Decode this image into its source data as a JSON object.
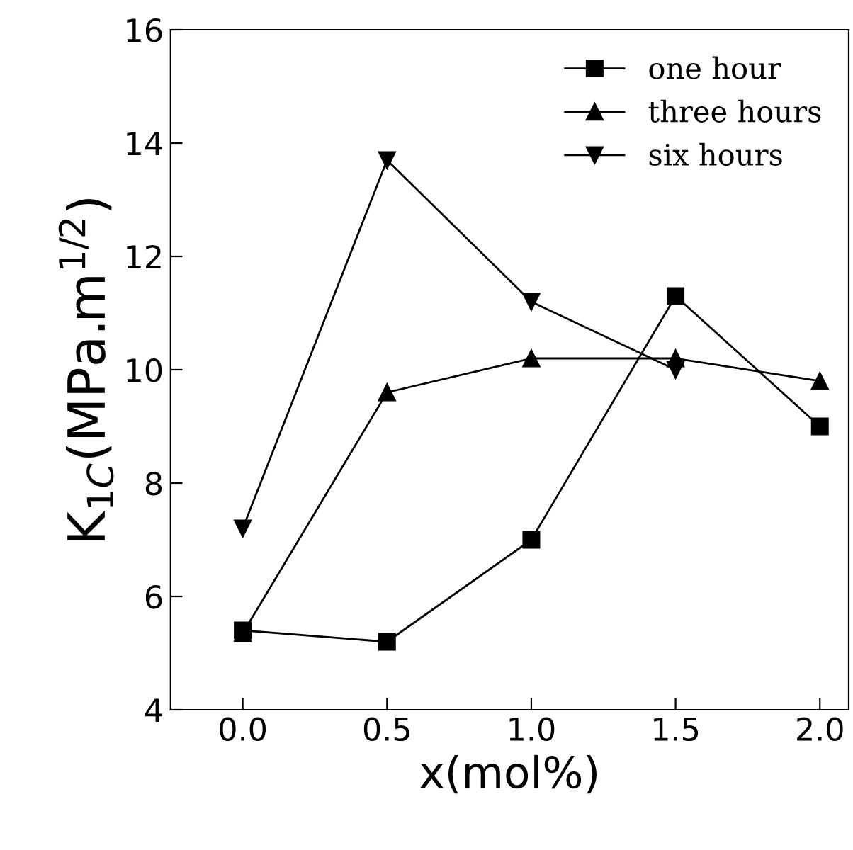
{
  "chart_data": {
    "type": "line",
    "xlabel": "x(mol%)",
    "ylabel": "K$_{1C}$(MPa.m$^{1/2}$)",
    "x": [
      0.0,
      0.5,
      1.0,
      1.5,
      2.0
    ],
    "xlim": [
      -0.25,
      2.1
    ],
    "xticks": [
      {
        "value": 0,
        "label": "0.0"
      },
      {
        "value": 0.5,
        "label": "0.5"
      },
      {
        "value": 1,
        "label": "1.0"
      },
      {
        "value": 1.5,
        "label": "1.5"
      },
      {
        "value": 2,
        "label": "2.0"
      }
    ],
    "ylim": [
      4,
      16
    ],
    "yticks": [
      4,
      6,
      8,
      10,
      12,
      14,
      16
    ],
    "grid": false,
    "legend": "top right",
    "line_style": "solid",
    "series": [
      {
        "name": "one hour",
        "color": "#000000",
        "marker": "square",
        "values": [
          5.4,
          5.2,
          7.0,
          11.3,
          9.0
        ]
      },
      {
        "name": "three hours",
        "color": "#000000",
        "marker": "triangle",
        "values": [
          5.35,
          9.6,
          10.2,
          10.2,
          9.8
        ]
      },
      {
        "name": "six hours",
        "color": "#000000",
        "marker": "triangle_down",
        "values": [
          7.2,
          13.7,
          11.2,
          10.0,
          null
        ]
      }
    ]
  }
}
